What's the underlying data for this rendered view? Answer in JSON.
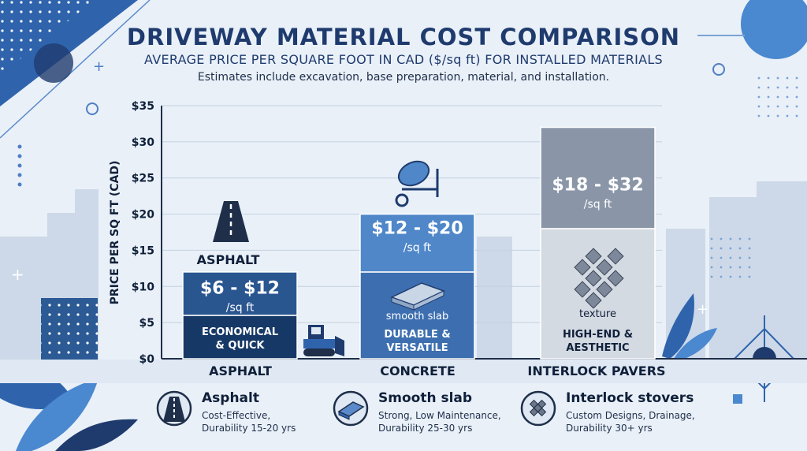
{
  "header": {
    "title": "DRIVEWAY MATERIAL COST COMPARISON",
    "subtitle": "AVERAGE PRICE PER SQUARE FOOT IN CAD ($/sq ft) FOR INSTALLED MATERIALS",
    "note": "Estimates include excavation, base preparation, material, and installation."
  },
  "chart_data": {
    "type": "bar",
    "title": "DRIVEWAY MATERIAL COST COMPARISON",
    "subtitle": "AVERAGE PRICE PER SQUARE FOOT IN CAD ($/sq ft) FOR INSTALLED MATERIALS",
    "ylabel": "PRICE PER SQ FT (CAD)",
    "xlabel": "",
    "ylim": [
      0,
      35
    ],
    "yticks": [
      0,
      5,
      10,
      15,
      20,
      25,
      30,
      35
    ],
    "ytick_labels": [
      "$0",
      "$5",
      "$10",
      "$15",
      "$20",
      "$25",
      "$30",
      "$35"
    ],
    "grid": true,
    "categories": [
      "ASPHALT",
      "CONCRETE",
      "INTERLOCK PAVERS"
    ],
    "bars": [
      {
        "category": "ASPHALT",
        "low": 6,
        "high": 12,
        "range_label": "$6 - $12",
        "unit_label": "/sq ft",
        "top_label": "ASPHALT",
        "descriptor_lines": [
          "ECONOMICAL",
          "& QUICK"
        ],
        "icon": "road-icon",
        "color_low": "#163866",
        "color_high": "#2a5690"
      },
      {
        "category": "CONCRETE",
        "low": 12,
        "high": 20,
        "range_label": "$12 - $20",
        "unit_label": "/sq ft",
        "inner_label": "smooth slab",
        "descriptor_lines": [
          "DURABLE &",
          "VERSATILE"
        ],
        "icon": "slab-icon",
        "top_icon": "cement-mixer-icon",
        "color_low": "#3d6fb0",
        "color_high": "#4f87c9"
      },
      {
        "category": "INTERLOCK PAVERS",
        "low": 18,
        "high": 32,
        "range_label": "$18 - $32",
        "unit_label": "/sq ft",
        "inner_label": "texture",
        "descriptor_lines": [
          "HIGH-END &",
          "AESTHETIC"
        ],
        "icon": "pavers-icon",
        "color_low": "#d4dae2",
        "color_high": "#8a96a8"
      }
    ]
  },
  "legend": [
    {
      "name": "Asphalt",
      "desc_lines": [
        "Cost-Effective,",
        "Durability 15-20 yrs"
      ],
      "icon": "road-icon"
    },
    {
      "name": "Smooth slab",
      "desc_lines": [
        "Strong, Low Maintenance,",
        "Durability 25-30 yrs"
      ],
      "icon": "slab-icon"
    },
    {
      "name": "Interlock stovers",
      "desc_lines": [
        "Custom Designs, Drainage,",
        "Durability 30+ yrs"
      ],
      "icon": "pavers-icon"
    }
  ],
  "colors": {
    "title": "#1f3b6e",
    "accent": "#2a5690",
    "background": "#e9f0f8"
  }
}
